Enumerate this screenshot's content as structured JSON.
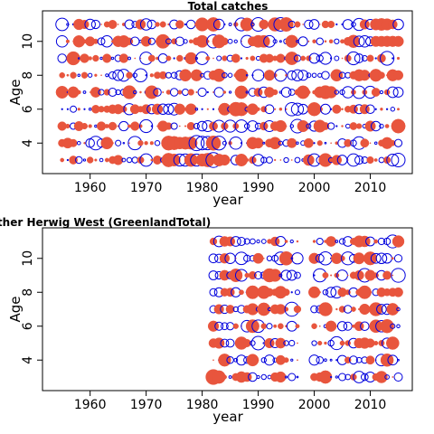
{
  "colors": {
    "positive": "#e8553d",
    "negative": "#0000dd",
    "frame": "#000000"
  },
  "chart_data": [
    {
      "type": "scatter",
      "subtype": "bubble-residuals",
      "title": "Total catches",
      "xlabel": "year",
      "ylabel": "Age",
      "xlim": [
        1951.5,
        2017.5
      ],
      "ylim": [
        2.2,
        11.8
      ],
      "xticks": [
        1960,
        1970,
        1980,
        1990,
        2000,
        2010
      ],
      "yticks": [
        4,
        6,
        8,
        10
      ],
      "years": [
        1955,
        2015
      ],
      "ages": [
        3,
        11
      ],
      "bubble_style": "mixed large and small residuals across all years; large positive cluster at ages 3-4 in late 1970s, large negatives scattered"
    },
    {
      "type": "scatter",
      "subtype": "bubble-residuals",
      "title": "lther Herwig West (GreenlandTotal)",
      "xlabel": "year",
      "ylabel": "Age",
      "xlim": [
        1951.5,
        2017.5
      ],
      "ylim": [
        2.2,
        11.8
      ],
      "xticks": [
        1960,
        1970,
        1980,
        1990,
        2000,
        2010
      ],
      "yticks": [
        4,
        6,
        8,
        10
      ],
      "years": [
        1982,
        2015
      ],
      "ages": [
        3,
        11
      ],
      "missing_years": [
        1998,
        1999
      ],
      "bubble_style": "survey residuals from 1982 onward; very large positive at age 3 in 1982"
    }
  ]
}
